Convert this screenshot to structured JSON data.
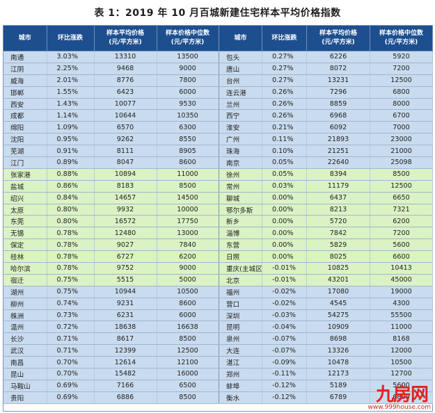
{
  "title": "表 1：2019 年 10 月百城新建住宅样本平均价格指数",
  "headers": {
    "city": "城市",
    "mom": "环比涨跌",
    "avg_line1": "样本平均价格",
    "avg_line2": "(元/平方米)",
    "median_line1": "样本价格中位数",
    "median_line2": "(元/平方米)"
  },
  "colors": {
    "header": "#1d4f8f",
    "blue_row": "#c9dbee",
    "green_row": "#dbf2c4"
  },
  "left_rows": [
    {
      "city": "南通",
      "mom": "3.03%",
      "avg": "13310",
      "median": "13500",
      "band": "blue"
    },
    {
      "city": "江阴",
      "mom": "2.25%",
      "avg": "9468",
      "median": "9000",
      "band": "blue"
    },
    {
      "city": "威海",
      "mom": "2.01%",
      "avg": "8776",
      "median": "7800",
      "band": "blue"
    },
    {
      "city": "邯郸",
      "mom": "1.55%",
      "avg": "6423",
      "median": "6000",
      "band": "blue"
    },
    {
      "city": "西安",
      "mom": "1.43%",
      "avg": "10077",
      "median": "9530",
      "band": "blue"
    },
    {
      "city": "成都",
      "mom": "1.14%",
      "avg": "10644",
      "median": "10350",
      "band": "blue"
    },
    {
      "city": "绵阳",
      "mom": "1.09%",
      "avg": "6570",
      "median": "6300",
      "band": "blue"
    },
    {
      "city": "沈阳",
      "mom": "0.95%",
      "avg": "9262",
      "median": "8550",
      "band": "blue"
    },
    {
      "city": "芜湖",
      "mom": "0.91%",
      "avg": "8111",
      "median": "8905",
      "band": "blue"
    },
    {
      "city": "江门",
      "mom": "0.89%",
      "avg": "8047",
      "median": "8600",
      "band": "blue"
    },
    {
      "city": "张家港",
      "mom": "0.88%",
      "avg": "10894",
      "median": "11000",
      "band": "green"
    },
    {
      "city": "盐城",
      "mom": "0.86%",
      "avg": "8183",
      "median": "8500",
      "band": "green"
    },
    {
      "city": "绍兴",
      "mom": "0.84%",
      "avg": "14657",
      "median": "14500",
      "band": "green"
    },
    {
      "city": "太原",
      "mom": "0.80%",
      "avg": "9932",
      "median": "10000",
      "band": "green"
    },
    {
      "city": "东莞",
      "mom": "0.80%",
      "avg": "16572",
      "median": "17750",
      "band": "green"
    },
    {
      "city": "无锡",
      "mom": "0.78%",
      "avg": "12480",
      "median": "13000",
      "band": "green"
    },
    {
      "city": "保定",
      "mom": "0.78%",
      "avg": "9027",
      "median": "7840",
      "band": "green"
    },
    {
      "city": "桂林",
      "mom": "0.78%",
      "avg": "6727",
      "median": "6200",
      "band": "green"
    },
    {
      "city": "哈尔滨",
      "mom": "0.78%",
      "avg": "9752",
      "median": "9000",
      "band": "green"
    },
    {
      "city": "宿迁",
      "mom": "0.75%",
      "avg": "5515",
      "median": "5000",
      "band": "green"
    },
    {
      "city": "湖州",
      "mom": "0.75%",
      "avg": "10944",
      "median": "10500",
      "band": "blue"
    },
    {
      "city": "柳州",
      "mom": "0.74%",
      "avg": "9231",
      "median": "8600",
      "band": "blue"
    },
    {
      "city": "株洲",
      "mom": "0.73%",
      "avg": "6231",
      "median": "6000",
      "band": "blue"
    },
    {
      "city": "温州",
      "mom": "0.72%",
      "avg": "18638",
      "median": "16638",
      "band": "blue"
    },
    {
      "city": "长沙",
      "mom": "0.71%",
      "avg": "8617",
      "median": "8500",
      "band": "blue"
    },
    {
      "city": "武汉",
      "mom": "0.71%",
      "avg": "12399",
      "median": "12500",
      "band": "blue"
    },
    {
      "city": "南昌",
      "mom": "0.70%",
      "avg": "12614",
      "median": "12100",
      "band": "blue"
    },
    {
      "city": "昆山",
      "mom": "0.70%",
      "avg": "15482",
      "median": "16000",
      "band": "blue"
    },
    {
      "city": "马鞍山",
      "mom": "0.69%",
      "avg": "7166",
      "median": "6500",
      "band": "blue"
    },
    {
      "city": "贵阳",
      "mom": "0.69%",
      "avg": "6886",
      "median": "8500",
      "band": "blue"
    }
  ],
  "right_rows": [
    {
      "city": "包头",
      "mom": "0.27%",
      "avg": "6226",
      "median": "5920",
      "band": "blue"
    },
    {
      "city": "唐山",
      "mom": "0.27%",
      "avg": "8072",
      "median": "7200",
      "band": "blue"
    },
    {
      "city": "台州",
      "mom": "0.27%",
      "avg": "13231",
      "median": "12500",
      "band": "blue"
    },
    {
      "city": "连云港",
      "mom": "0.26%",
      "avg": "7296",
      "median": "6800",
      "band": "blue"
    },
    {
      "city": "兰州",
      "mom": "0.26%",
      "avg": "8859",
      "median": "8000",
      "band": "blue"
    },
    {
      "city": "西宁",
      "mom": "0.26%",
      "avg": "6968",
      "median": "6700",
      "band": "blue"
    },
    {
      "city": "淮安",
      "mom": "0.21%",
      "avg": "6092",
      "median": "7000",
      "band": "blue"
    },
    {
      "city": "广州",
      "mom": "0.11%",
      "avg": "21893",
      "median": "23000",
      "band": "blue"
    },
    {
      "city": "珠海",
      "mom": "0.10%",
      "avg": "21251",
      "median": "21000",
      "band": "blue"
    },
    {
      "city": "南京",
      "mom": "0.05%",
      "avg": "22640",
      "median": "25098",
      "band": "blue"
    },
    {
      "city": "徐州",
      "mom": "0.05%",
      "avg": "8394",
      "median": "8500",
      "band": "green"
    },
    {
      "city": "常州",
      "mom": "0.03%",
      "avg": "11179",
      "median": "12500",
      "band": "green"
    },
    {
      "city": "聊城",
      "mom": "0.00%",
      "avg": "6437",
      "median": "6650",
      "band": "green"
    },
    {
      "city": "鄂尔多斯",
      "mom": "0.00%",
      "avg": "8213",
      "median": "7321",
      "band": "green"
    },
    {
      "city": "新乡",
      "mom": "0.00%",
      "avg": "5720",
      "median": "6200",
      "band": "green"
    },
    {
      "city": "淄博",
      "mom": "0.00%",
      "avg": "7842",
      "median": "7200",
      "band": "green"
    },
    {
      "city": "东营",
      "mom": "0.00%",
      "avg": "5829",
      "median": "5600",
      "band": "green"
    },
    {
      "city": "日照",
      "mom": "0.00%",
      "avg": "8025",
      "median": "6600",
      "band": "green"
    },
    {
      "city": "重庆(主城区)",
      "mom": "-0.01%",
      "avg": "10825",
      "median": "10413",
      "band": "green"
    },
    {
      "city": "北京",
      "mom": "-0.01%",
      "avg": "43201",
      "median": "45000",
      "band": "green"
    },
    {
      "city": "福州",
      "mom": "-0.02%",
      "avg": "17080",
      "median": "19000",
      "band": "blue"
    },
    {
      "city": "营口",
      "mom": "-0.02%",
      "avg": "4545",
      "median": "4300",
      "band": "blue"
    },
    {
      "city": "深圳",
      "mom": "-0.03%",
      "avg": "54275",
      "median": "55500",
      "band": "blue"
    },
    {
      "city": "昆明",
      "mom": "-0.04%",
      "avg": "10909",
      "median": "11000",
      "band": "blue"
    },
    {
      "city": "泉州",
      "mom": "-0.07%",
      "avg": "8698",
      "median": "8168",
      "band": "blue"
    },
    {
      "city": "大连",
      "mom": "-0.07%",
      "avg": "13326",
      "median": "12000",
      "band": "blue"
    },
    {
      "city": "湛江",
      "mom": "-0.09%",
      "avg": "10478",
      "median": "10500",
      "band": "blue"
    },
    {
      "city": "郑州",
      "mom": "-0.11%",
      "avg": "12173",
      "median": "12700",
      "band": "blue"
    },
    {
      "city": "蚌埠",
      "mom": "-0.12%",
      "avg": "5189",
      "median": "5600",
      "band": "blue"
    },
    {
      "city": "衡水",
      "mom": "-0.12%",
      "avg": "6789",
      "median": "6800",
      "band": "blue"
    }
  ],
  "watermark": {
    "brand": "九房网",
    "url": "www.999house.com"
  }
}
